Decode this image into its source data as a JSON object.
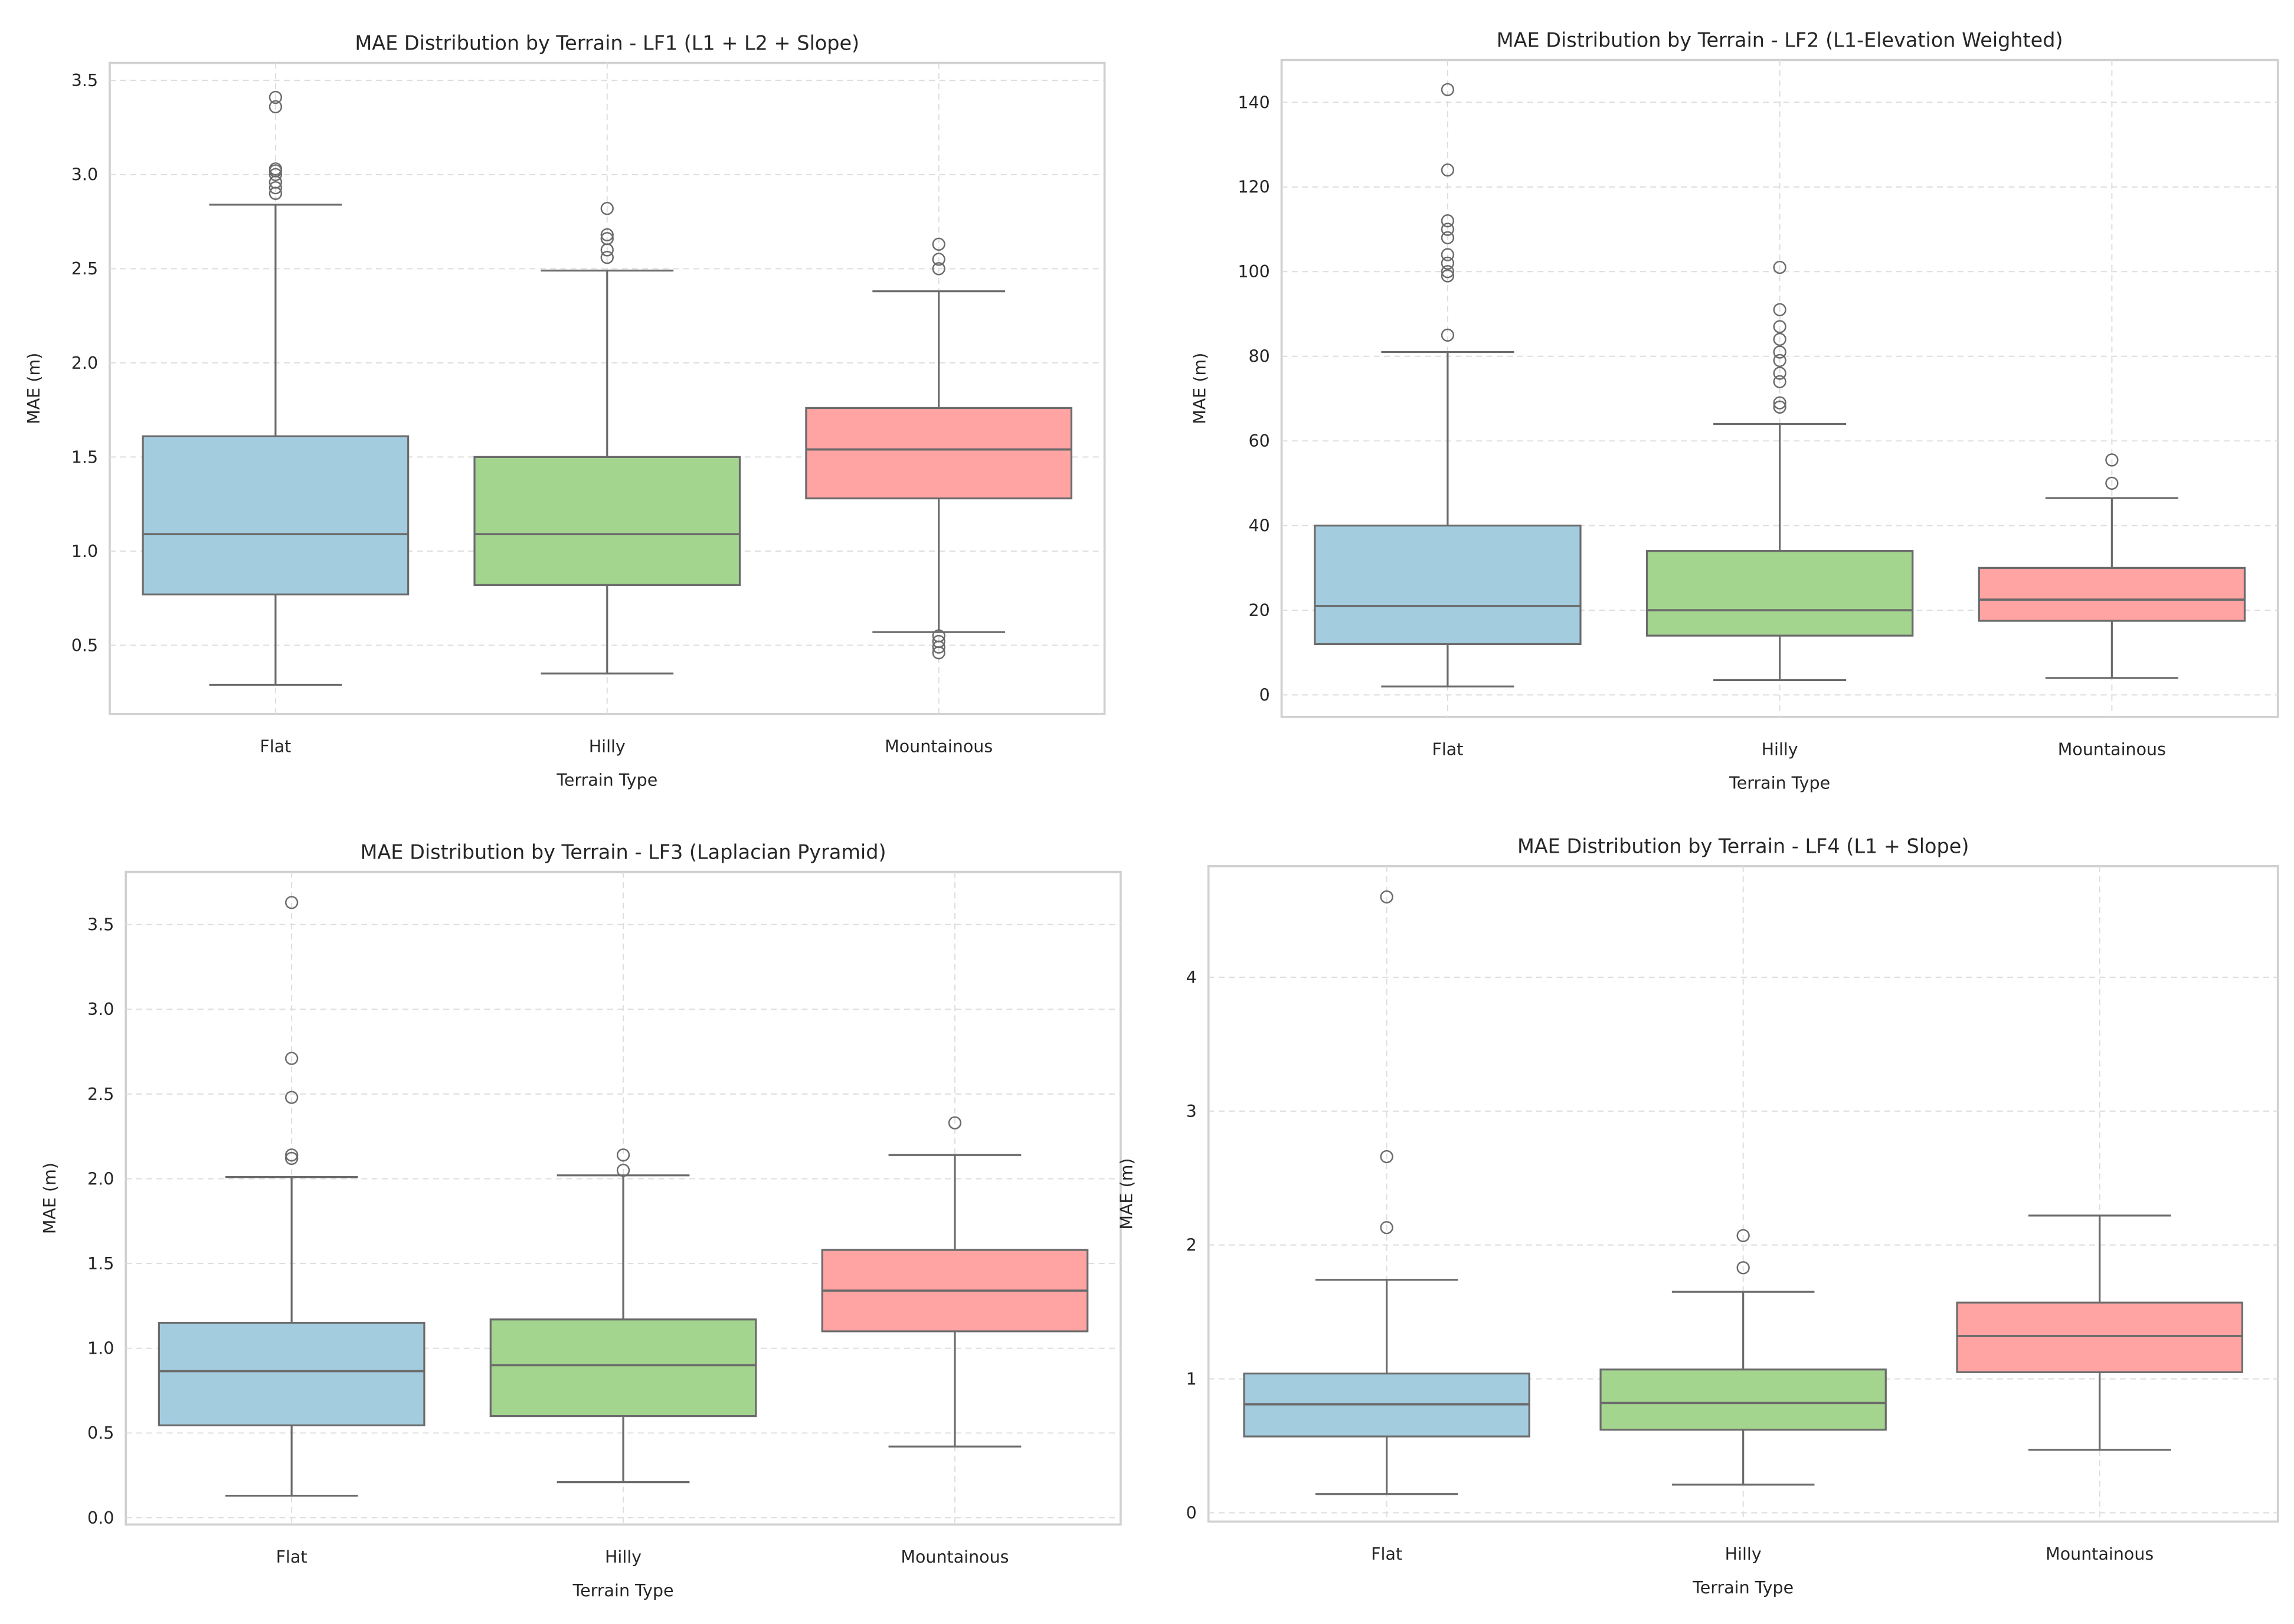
{
  "colors": {
    "Flat": "#a3ccdf",
    "Hilly": "#a4d58f",
    "Mountainous": "#ffa3a3",
    "line": "#6b6b6b",
    "grid": "#dddddd",
    "frame": "#d0d0d0"
  },
  "chart_data": [
    {
      "type": "box",
      "title": "MAE Distribution by Terrain - LF1 (L1 + L2 + Slope)",
      "xlabel": "Terrain Type",
      "ylabel": "MAE (m)",
      "categories": [
        "Flat",
        "Hilly",
        "Mountainous"
      ],
      "ylim": [
        0.135,
        3.593
      ],
      "yticks": [
        0.5,
        1.0,
        1.5,
        2.0,
        2.5,
        3.0,
        3.5
      ],
      "ytick_labels": [
        "0.5",
        "1.0",
        "1.5",
        "2.0",
        "2.5",
        "3.0",
        "3.5"
      ],
      "grid": true,
      "boxes": [
        {
          "whislo": 0.29,
          "q1": 0.77,
          "med": 1.09,
          "q3": 1.61,
          "whishi": 2.84,
          "fliers": [
            2.9,
            2.93,
            2.96,
            3.0,
            3.02,
            3.03,
            3.36,
            3.41
          ]
        },
        {
          "whislo": 0.35,
          "q1": 0.82,
          "med": 1.09,
          "q3": 1.5,
          "whishi": 2.49,
          "fliers": [
            2.56,
            2.6,
            2.66,
            2.68,
            2.82
          ]
        },
        {
          "whislo": 0.57,
          "q1": 1.28,
          "med": 1.54,
          "q3": 1.76,
          "whishi": 2.38,
          "fliers": [
            0.46,
            0.49,
            0.52,
            0.55,
            2.5,
            2.55,
            2.63
          ]
        }
      ]
    },
    {
      "type": "box",
      "title": "MAE Distribution by Terrain - LF2 (L1-Elevation Weighted)",
      "xlabel": "Terrain Type",
      "ylabel": "MAE (m)",
      "categories": [
        "Flat",
        "Hilly",
        "Mountainous"
      ],
      "ylim": [
        -5.2,
        150
      ],
      "yticks": [
        0,
        20,
        40,
        60,
        80,
        100,
        120,
        140
      ],
      "ytick_labels": [
        "0",
        "20",
        "40",
        "60",
        "80",
        "100",
        "120",
        "140"
      ],
      "grid": true,
      "boxes": [
        {
          "whislo": 2,
          "q1": 12,
          "med": 21,
          "q3": 40,
          "whishi": 81,
          "fliers": [
            85,
            99,
            100,
            102,
            104,
            108,
            110,
            112,
            124,
            143
          ]
        },
        {
          "whislo": 3.5,
          "q1": 14,
          "med": 20,
          "q3": 34,
          "whishi": 64,
          "fliers": [
            68,
            69,
            74,
            76,
            79,
            81,
            84,
            87,
            91,
            101
          ]
        },
        {
          "whislo": 4,
          "q1": 17.5,
          "med": 22.5,
          "q3": 30,
          "whishi": 46.5,
          "fliers": [
            50,
            55.5
          ]
        }
      ]
    },
    {
      "type": "box",
      "title": "MAE Distribution by Terrain - LF3 (Laplacian Pyramid)",
      "xlabel": "Terrain Type",
      "ylabel": "MAE (m)",
      "categories": [
        "Flat",
        "Hilly",
        "Mountainous"
      ],
      "ylim": [
        -0.04,
        3.81
      ],
      "yticks": [
        0.0,
        0.5,
        1.0,
        1.5,
        2.0,
        2.5,
        3.0,
        3.5
      ],
      "ytick_labels": [
        "0.0",
        "0.5",
        "1.0",
        "1.5",
        "2.0",
        "2.5",
        "3.0",
        "3.5"
      ],
      "grid": true,
      "boxes": [
        {
          "whislo": 0.13,
          "q1": 0.545,
          "med": 0.865,
          "q3": 1.15,
          "whishi": 2.01,
          "fliers": [
            2.12,
            2.14,
            2.48,
            2.71,
            3.63
          ]
        },
        {
          "whislo": 0.21,
          "q1": 0.6,
          "med": 0.9,
          "q3": 1.17,
          "whishi": 2.02,
          "fliers": [
            2.05,
            2.14
          ]
        },
        {
          "whislo": 0.42,
          "q1": 1.1,
          "med": 1.34,
          "q3": 1.58,
          "whishi": 2.14,
          "fliers": [
            2.33
          ]
        }
      ]
    },
    {
      "type": "box",
      "title": "MAE Distribution by Terrain - LF4 (L1 + Slope)",
      "xlabel": "Terrain Type",
      "ylabel": "MAE (m)",
      "categories": [
        "Flat",
        "Hilly",
        "Mountainous"
      ],
      "ylim": [
        -0.066,
        4.83
      ],
      "yticks": [
        0,
        1,
        2,
        3,
        4
      ],
      "ytick_labels": [
        "0",
        "1",
        "2",
        "3",
        "4"
      ],
      "grid": true,
      "boxes": [
        {
          "whislo": 0.14,
          "q1": 0.57,
          "med": 0.81,
          "q3": 1.04,
          "whishi": 1.74,
          "fliers": [
            2.13,
            2.66,
            4.6
          ]
        },
        {
          "whislo": 0.21,
          "q1": 0.62,
          "med": 0.82,
          "q3": 1.07,
          "whishi": 1.65,
          "fliers": [
            1.83,
            2.07
          ]
        },
        {
          "whislo": 0.47,
          "q1": 1.05,
          "med": 1.32,
          "q3": 1.57,
          "whishi": 2.22,
          "fliers": []
        }
      ]
    }
  ]
}
